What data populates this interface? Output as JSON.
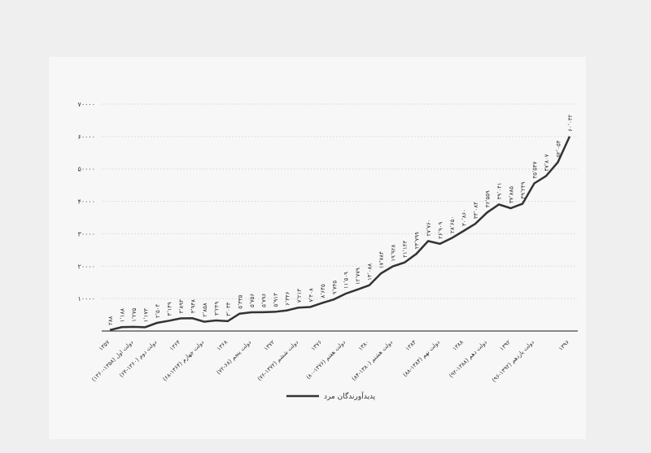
{
  "chart_data": {
    "type": "line",
    "series": [
      {
        "name": "پدیدآورندگان مرد",
        "color": "#333333",
        "values": [
          288,
          1188,
          1275,
          1173,
          2504,
          3149,
          3893,
          3938,
          2858,
          3249,
          3033,
          5335,
          5756,
          5796,
          5913,
          6346,
          7213,
          7408,
          8645,
          9745,
          11509,
          12779,
          14088,
          17784,
          19928,
          21143,
          23799,
          27760,
          26909,
          28650,
          30860,
          33084,
          36559,
          39041,
          37885,
          39249,
          45547,
          47807,
          52054,
          60032
        ],
        "value_labels": [
          "۲۸۸",
          "۱٬۱۸۸",
          "۱٬۲۷۵",
          "۱٬۱۷۳",
          "۲٬۵۰۴",
          "۳٬۱۴۹",
          "۳٬۸۹۳",
          "۳٬۹۳۸",
          "۲٬۸۵۸",
          "۳٬۲۴۹",
          "۳٬۰۳۳",
          "۵٬۳۳۵",
          "۵٬۷۵۶",
          "۵٬۷۹۶",
          "۵٬۹۱۳",
          "۶٬۳۴۶",
          "۷٬۲۱۳",
          "۷٬۴۰۸",
          "۸٬۶۴۵",
          "۹٬۷۴۵",
          "۱۱٬۵۰۹",
          "۱۲٬۷۷۹",
          "۱۴٬۰۸۸",
          "۱۷٬۷۸۴",
          "۱۹٬۹۲۸",
          "۲۱٬۱۴۳",
          "۲۳٬۷۹۹",
          "۲۷٬۷۶۰",
          "۲۶٬۹۰۹",
          "۲۸٬۶۵۰",
          "۳۰٬۸۶۰",
          "۳۳٬۰۸۴",
          "۳۶٬۵۵۹",
          "۳۹٬۰۴۱",
          "۳۷٬۸۸۵",
          "۳۹٬۲۴۹",
          "۴۵٬۵۴۷",
          "۴۷٬۸۰۷",
          "۵۲٬۰۵۴",
          "۶۰٬۰۳۲"
        ]
      }
    ],
    "categories": [
      "۱۳۵۷",
      null,
      "دولت اول (۱۳۵۸-۱۳۶۰)",
      null,
      "دولت دوم (۱۳۶۰-۶۴)",
      null,
      "۱۳۶۴",
      null,
      "دولت چهارم (۱۳۶۴-۶۸)",
      null,
      "۱۳۶۸",
      null,
      "دولت پنجم (۶۸-۷۲)",
      null,
      "۱۳۷۲",
      null,
      "دولت ششم (۱۳۷۲-۷۶)",
      null,
      "۱۳۷۶",
      null,
      "دولت هفتم (۱۳۷۶-۸۰)",
      null,
      "۱۳۸۰",
      null,
      "دولت هشتم (۱۳۸۰-۸۴)",
      null,
      "۱۳۸۴",
      null,
      "دولت نهم (۱۳۸۴-۸۸)",
      null,
      "۱۳۸۸",
      null,
      "دولت دهم (۱۳۸۸-۹۲)",
      null,
      "۱۳۹۲",
      null,
      "دولت یازدهم (۱۳۹۲-۹۶)",
      null,
      null,
      "۱۳۹۶"
    ],
    "ylim": [
      0,
      70000
    ],
    "yticks": [
      {
        "value": 10000,
        "label": "۱۰۰۰۰"
      },
      {
        "value": 20000,
        "label": "۲۰۰۰۰"
      },
      {
        "value": 30000,
        "label": "۳۰۰۰۰"
      },
      {
        "value": 40000,
        "label": "۴۰۰۰۰"
      },
      {
        "value": 50000,
        "label": "۵۰۰۰۰"
      },
      {
        "value": 60000,
        "label": "۶۰۰۰۰"
      },
      {
        "value": 70000,
        "label": "۷۰۰۰۰"
      }
    ],
    "grid": true,
    "legend": "bottom"
  }
}
